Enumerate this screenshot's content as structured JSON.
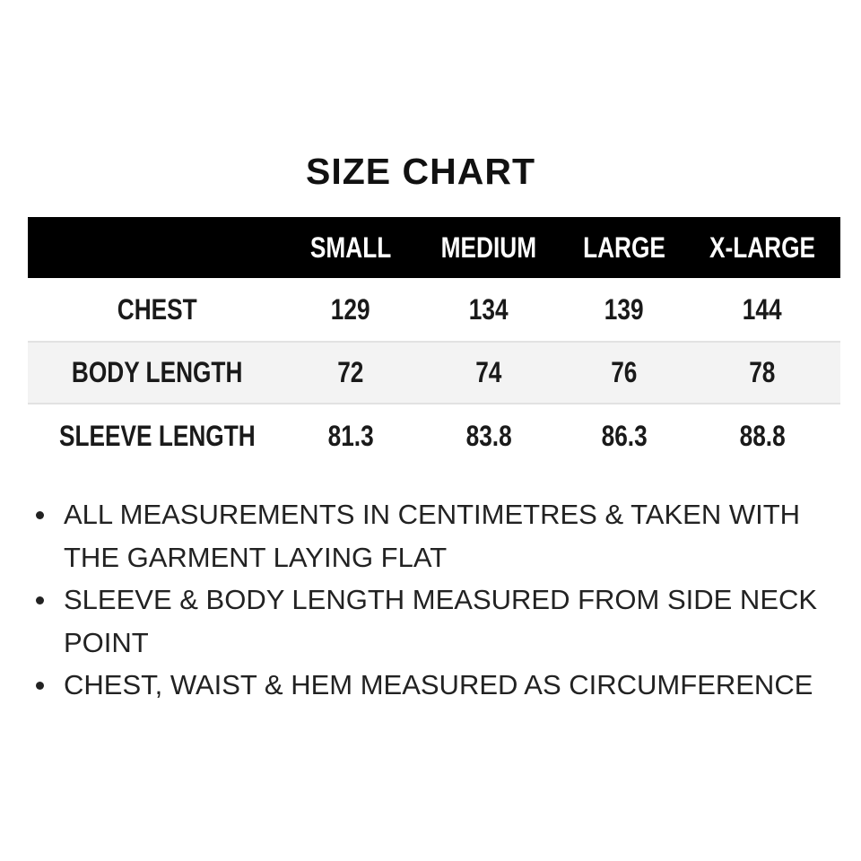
{
  "title": "SIZE CHART",
  "table": {
    "headers": [
      "",
      "SMALL",
      "MEDIUM",
      "LARGE",
      "X-LARGE"
    ],
    "rows": [
      {
        "label": "CHEST",
        "values": [
          "129",
          "134",
          "139",
          "144"
        ]
      },
      {
        "label": "BODY LENGTH",
        "values": [
          "72",
          "74",
          "76",
          "78"
        ]
      },
      {
        "label": "SLEEVE LENGTH",
        "values": [
          "81.3",
          "83.8",
          "86.3",
          "88.8"
        ]
      }
    ]
  },
  "notes": [
    "ALL MEASUREMENTS IN CENTIMETRES & TAKEN WITH THE GARMENT LAYING FLAT",
    "SLEEVE & BODY LENGTH MEASURED FROM SIDE NECK POINT",
    "CHEST, WAIST & HEM MEASURED AS CIRCUMFERENCE"
  ],
  "colors": {
    "header_bg": "#000000",
    "header_text": "#ffffff",
    "alt_row_bg": "#f3f3f3"
  }
}
